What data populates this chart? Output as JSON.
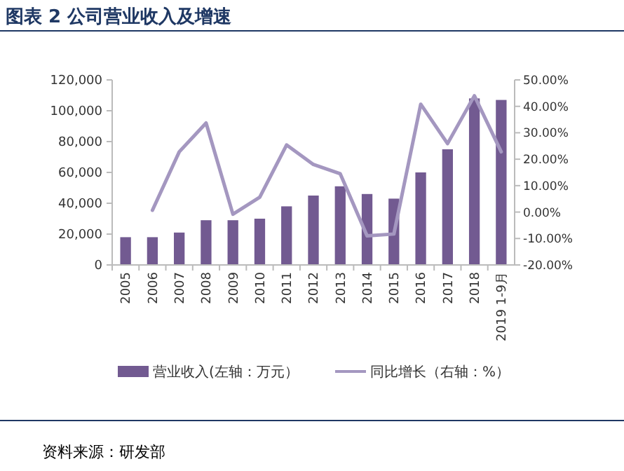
{
  "chart_data": {
    "type": "bar",
    "title": "图表 2 公司营业收入及增速",
    "categories": [
      "2005",
      "2006",
      "2007",
      "2008",
      "2009",
      "2010",
      "2011",
      "2012",
      "2013",
      "2014",
      "2015",
      "2016",
      "2017",
      "2018",
      "2019 1-9月"
    ],
    "series": [
      {
        "name": "营业收入(左轴：万元）",
        "color": "#725a91",
        "values": [
          18000,
          18000,
          21000,
          29000,
          29000,
          30000,
          38000,
          45000,
          51000,
          46000,
          43000,
          60000,
          75000,
          108000,
          107000
        ]
      },
      {
        "name": "同比增长（右轴：%）",
        "type": "line",
        "axis": "y2",
        "color": "#a497c0",
        "values": [
          null,
          0.7,
          22.8,
          33.7,
          -0.8,
          5.6,
          25.4,
          18,
          14.5,
          -9,
          -8.3,
          40.8,
          25.9,
          44,
          22.8
        ]
      }
    ],
    "ylim": [
      0,
      120000
    ],
    "yticks": [
      0,
      {
        "value": 20000,
        "label": "20,000"
      },
      {
        "value": 40000,
        "label": "40,000"
      },
      {
        "value": 60000,
        "label": "60,000"
      },
      {
        "value": 80000,
        "label": "80,000"
      },
      {
        "value": 100000,
        "label": "100,000"
      },
      {
        "value": 120000,
        "label": "120,000"
      }
    ],
    "y2lim": [
      -20,
      50
    ],
    "y2ticks": [
      {
        "value": -20,
        "label": "-20.00%"
      },
      {
        "value": -10,
        "label": "-10.00%"
      },
      {
        "value": 0,
        "label": "0.00%"
      },
      {
        "value": 10,
        "label": "10.00%"
      },
      {
        "value": 20,
        "label": "20.00%"
      },
      {
        "value": 30,
        "label": "30.00%"
      },
      {
        "value": 40,
        "label": "40.00%"
      },
      {
        "value": 50,
        "label": "50.00%"
      }
    ],
    "legend": "bottom",
    "grid": false,
    "annotations": [
      "资料来源：研发部"
    ]
  }
}
